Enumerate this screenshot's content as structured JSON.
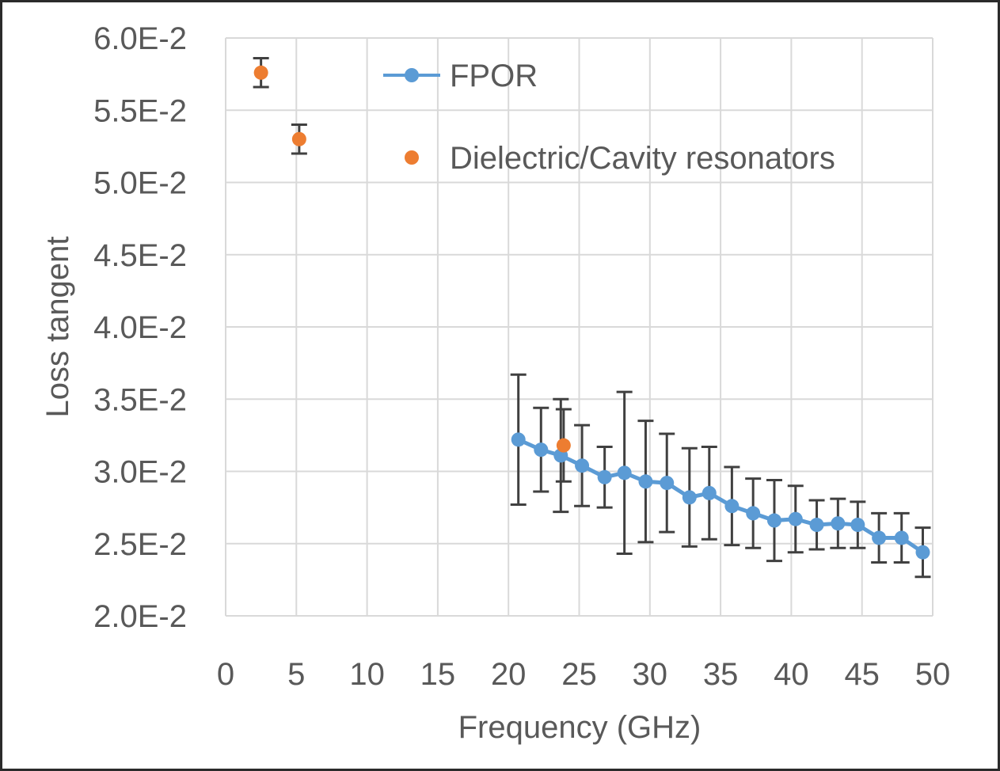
{
  "chart_data": {
    "type": "scatter",
    "title": "",
    "xlabel": "Frequency (GHz)",
    "ylabel": "Loss tangent",
    "xlim": [
      0,
      50
    ],
    "ylim": [
      0.02,
      0.06
    ],
    "xticks": [
      "0",
      "5",
      "10",
      "15",
      "20",
      "25",
      "30",
      "35",
      "40",
      "45",
      "50"
    ],
    "yticks": [
      "2.0E-2",
      "2.5E-2",
      "3.0E-2",
      "3.5E-2",
      "4.0E-2",
      "4.5E-2",
      "5.0E-2",
      "5.5E-2",
      "6.0E-2"
    ],
    "grid": true,
    "legend_position": "top-right",
    "series": [
      {
        "name": "FPOR",
        "style": "line-marker",
        "color": "#5B9BD5",
        "x": [
          20.7,
          22.3,
          23.7,
          25.2,
          26.8,
          28.2,
          29.7,
          31.2,
          32.8,
          34.2,
          35.8,
          37.3,
          38.8,
          40.3,
          41.8,
          43.3,
          44.7,
          46.2,
          47.8,
          49.3
        ],
        "y": [
          0.0322,
          0.0315,
          0.0311,
          0.0304,
          0.0296,
          0.0299,
          0.0293,
          0.0292,
          0.0282,
          0.0285,
          0.0276,
          0.0271,
          0.0266,
          0.0267,
          0.0263,
          0.0264,
          0.0263,
          0.0254,
          0.0254,
          0.0244
        ],
        "err": [
          0.0045,
          0.0029,
          0.0039,
          0.0028,
          0.0021,
          0.0056,
          0.0042,
          0.0034,
          0.0034,
          0.0032,
          0.0027,
          0.0024,
          0.0028,
          0.0023,
          0.0017,
          0.0017,
          0.0016,
          0.0017,
          0.0017,
          0.0017
        ]
      },
      {
        "name": "Dielectric/Cavity resonators",
        "style": "marker",
        "color": "#ED7D31",
        "x": [
          2.5,
          5.2,
          23.9
        ],
        "y": [
          0.0576,
          0.053,
          0.0318
        ],
        "err": [
          0.001,
          0.001,
          0.0025
        ]
      }
    ]
  }
}
